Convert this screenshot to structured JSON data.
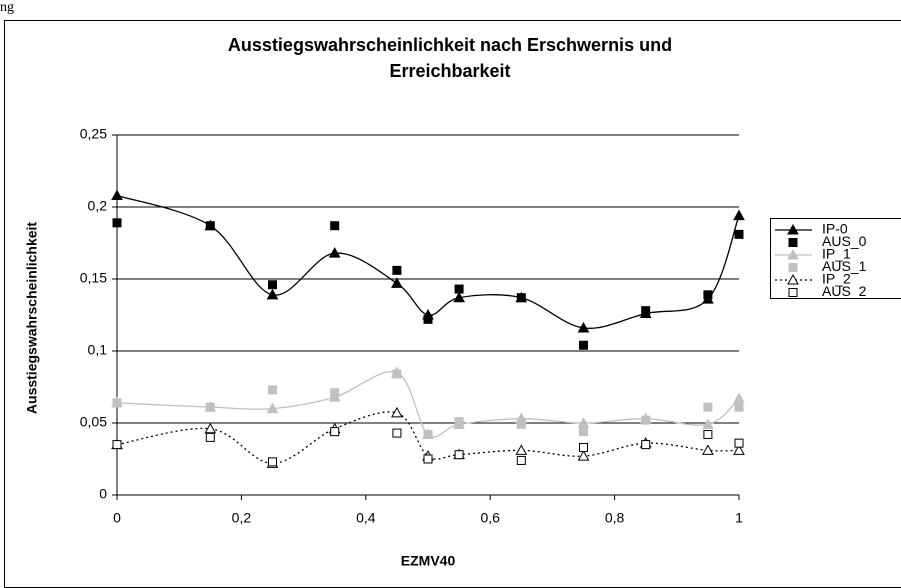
{
  "caption": "ng",
  "chart_data": {
    "type": "line",
    "title": [
      "Ausstiegswahrscheinlichkeit nach Erschwernis und",
      "Erreichbarkeit"
    ],
    "x_label": "EZMV40",
    "y_label": "Ausstiegswahrscheinlichkeit",
    "x": [
      0,
      0.15,
      0.25,
      0.35,
      0.45,
      0.5,
      0.55,
      0.65,
      0.75,
      0.85,
      0.95,
      1
    ],
    "xlim": [
      0,
      1
    ],
    "xticks": [
      0,
      {
        "value": 0.2,
        "label": "0,2"
      },
      {
        "value": 0.4,
        "label": "0,4"
      },
      {
        "value": 0.6,
        "label": "0,6"
      },
      {
        "value": 0.8,
        "label": "0,8"
      },
      1
    ],
    "ylim": [
      0,
      0.25
    ],
    "yticks": [
      0,
      {
        "value": 0.05,
        "label": "0,05"
      },
      {
        "value": 0.1,
        "label": "0,1"
      },
      {
        "value": 0.15,
        "label": "0,15"
      },
      {
        "value": 0.2,
        "label": "0,2"
      },
      {
        "value": 0.25,
        "label": "0,25"
      }
    ],
    "grid": true,
    "legend": "right",
    "series": [
      {
        "name": "IP-0",
        "color": "#000000",
        "line": "solid",
        "marker": "triangle",
        "filled": true,
        "values": [
          0.208,
          0.187,
          0.139,
          0.168,
          0.147,
          0.125,
          0.137,
          0.137,
          0.116,
          0.126,
          0.136,
          0.194
        ]
      },
      {
        "name": "AUS_0",
        "color": "#000000",
        "line": "none",
        "marker": "square",
        "filled": true,
        "values": [
          0.189,
          0.187,
          0.146,
          0.187,
          0.156,
          0.122,
          0.143,
          0.137,
          0.104,
          0.128,
          0.139,
          0.181
        ]
      },
      {
        "name": "IP_1",
        "color": "#c0c0c0",
        "line": "solid",
        "marker": "triangle",
        "filled": true,
        "values": [
          0.064,
          0.061,
          0.06,
          0.068,
          0.085,
          0.042,
          0.049,
          0.053,
          0.05,
          0.053,
          0.049,
          0.067
        ]
      },
      {
        "name": "AUS_1",
        "color": "#c0c0c0",
        "line": "none",
        "marker": "square",
        "filled": true,
        "values": [
          0.064,
          0.061,
          0.073,
          0.071,
          0.084,
          0.042,
          0.051,
          0.049,
          0.044,
          0.052,
          0.061,
          0.061
        ]
      },
      {
        "name": "IP_2",
        "color": "#000000",
        "line": "dotted",
        "marker": "triangle",
        "filled": false,
        "values": [
          0.035,
          0.046,
          0.022,
          0.046,
          0.057,
          0.027,
          0.028,
          0.031,
          0.027,
          0.036,
          0.031,
          0.031
        ]
      },
      {
        "name": "AUS_2",
        "color": "#000000",
        "line": "none",
        "marker": "square",
        "filled": false,
        "values": [
          0.035,
          0.04,
          0.023,
          0.044,
          0.043,
          0.025,
          0.028,
          0.024,
          0.033,
          0.035,
          0.042,
          0.036
        ]
      }
    ]
  }
}
